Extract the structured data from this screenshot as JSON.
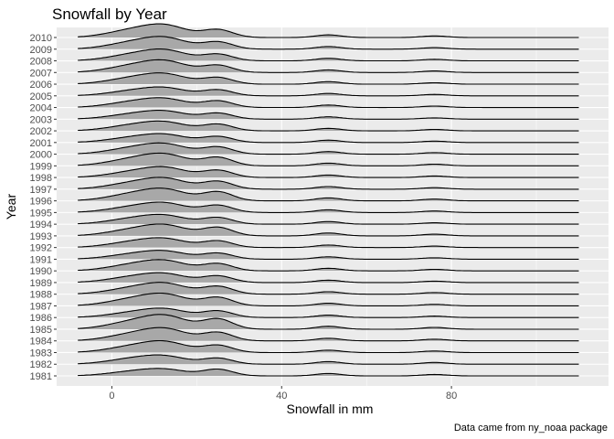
{
  "chart_data": {
    "type": "area",
    "subtype": "ridgeline",
    "title": "Snowfall by Year",
    "xlabel": "Snowfall in mm",
    "ylabel": "Year",
    "caption": "Data came from ny_noaa package",
    "xlim": [
      -13,
      117
    ],
    "x_ticks": [
      "0",
      "40",
      "80"
    ],
    "categories": [
      "1981",
      "1982",
      "1983",
      "1984",
      "1985",
      "1986",
      "1987",
      "1988",
      "1989",
      "1990",
      "1991",
      "1992",
      "1993",
      "1994",
      "1995",
      "1996",
      "1997",
      "1998",
      "1999",
      "2000",
      "2001",
      "2002",
      "2003",
      "2004",
      "2005",
      "2006",
      "2007",
      "2008",
      "2009",
      "2010"
    ],
    "density_x_range": [
      -8,
      110
    ],
    "density_components": [
      {
        "center": 5,
        "width": 6
      },
      {
        "center": 13,
        "width": 5
      },
      {
        "center": 25,
        "width": 3.5
      },
      {
        "center": 51,
        "width": 3
      },
      {
        "center": 76,
        "width": 3
      }
    ],
    "density_weights": [
      [
        0.35,
        0.45,
        0.55,
        0.2,
        0.12
      ],
      [
        0.45,
        0.55,
        0.5,
        0.22,
        0.15
      ],
      [
        0.5,
        0.75,
        0.6,
        0.2,
        0.13
      ],
      [
        0.55,
        0.85,
        0.7,
        0.22,
        0.14
      ],
      [
        0.6,
        0.95,
        0.85,
        0.25,
        0.15
      ],
      [
        0.4,
        0.6,
        0.55,
        0.2,
        0.12
      ],
      [
        0.55,
        0.8,
        0.7,
        0.22,
        0.13
      ],
      [
        0.5,
        0.75,
        0.65,
        0.21,
        0.14
      ],
      [
        0.45,
        0.6,
        0.55,
        0.2,
        0.12
      ],
      [
        0.5,
        0.7,
        0.6,
        0.22,
        0.13
      ],
      [
        0.4,
        0.55,
        0.5,
        0.2,
        0.12
      ],
      [
        0.45,
        0.6,
        0.55,
        0.21,
        0.12
      ],
      [
        0.5,
        0.75,
        0.7,
        0.24,
        0.14
      ],
      [
        0.45,
        0.6,
        0.55,
        0.22,
        0.12
      ],
      [
        0.45,
        0.65,
        0.6,
        0.23,
        0.13
      ],
      [
        0.55,
        0.8,
        0.75,
        0.25,
        0.15
      ],
      [
        0.5,
        0.75,
        0.65,
        0.22,
        0.13
      ],
      [
        0.45,
        0.7,
        0.6,
        0.21,
        0.13
      ],
      [
        0.55,
        0.8,
        0.7,
        0.23,
        0.14
      ],
      [
        0.5,
        0.7,
        0.6,
        0.22,
        0.13
      ],
      [
        0.4,
        0.55,
        0.5,
        0.2,
        0.12
      ],
      [
        0.45,
        0.6,
        0.55,
        0.21,
        0.12
      ],
      [
        0.4,
        0.55,
        0.5,
        0.2,
        0.11
      ],
      [
        0.45,
        0.6,
        0.55,
        0.21,
        0.12
      ],
      [
        0.4,
        0.55,
        0.5,
        0.2,
        0.12
      ],
      [
        0.5,
        0.7,
        0.55,
        0.21,
        0.12
      ],
      [
        0.55,
        0.8,
        0.6,
        0.22,
        0.13
      ],
      [
        0.5,
        0.75,
        0.55,
        0.21,
        0.13
      ],
      [
        0.55,
        0.8,
        0.6,
        0.22,
        0.13
      ],
      [
        0.6,
        0.85,
        0.65,
        0.22,
        0.13
      ]
    ],
    "grid": true,
    "colors": {
      "panel_background": "#ebebeb",
      "grid_major": "#ffffff",
      "ridge_fill": "#a8a8a8",
      "ridge_line": "#000000",
      "tick_text": "#4d4d4d"
    }
  }
}
